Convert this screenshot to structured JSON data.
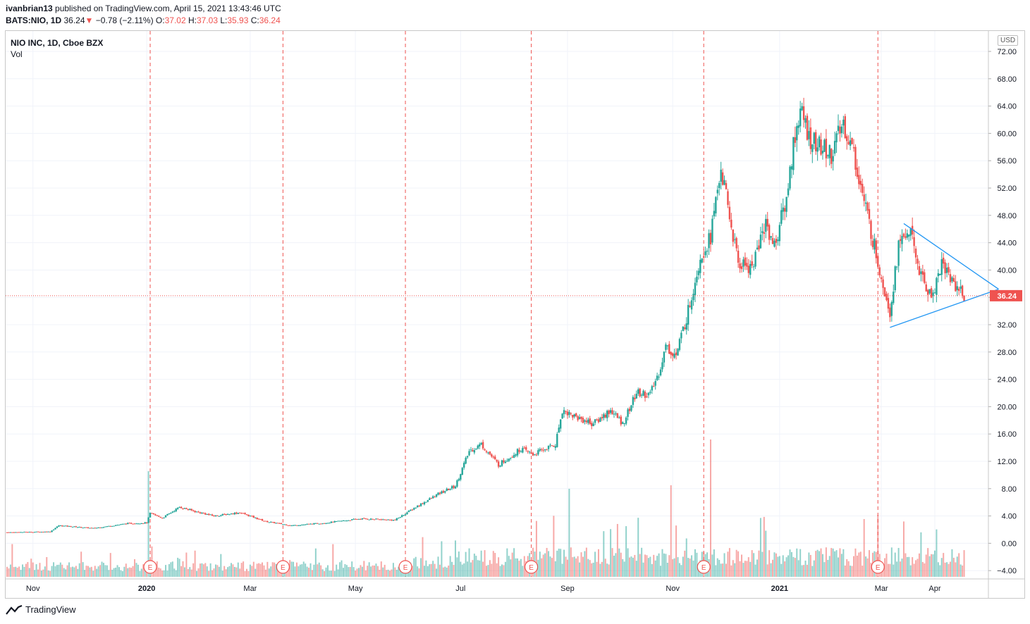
{
  "header": {
    "author": "ivanbrian13",
    "published_text": " published on TradingView.com, April 15, 2021 13:43:46 UTC",
    "symbol": "BATS:NIO, 1D",
    "last": "36.24",
    "arrow": "▼",
    "change": "−0.78 (−2.11%)",
    "o_label": "O:",
    "o_val": "37.02",
    "h_label": "H:",
    "h_val": "37.03",
    "l_label": "L:",
    "l_val": "35.93",
    "c_label": "C:",
    "c_val": "36.24"
  },
  "legend": {
    "title": "NIO INC, 1D, Cboe BZX",
    "volume": "Vol"
  },
  "price_axis": {
    "currency": "USD",
    "labels": [
      "72.00",
      "68.00",
      "64.00",
      "60.00",
      "56.00",
      "52.00",
      "48.00",
      "44.00",
      "40.00",
      "36.00",
      "32.00",
      "28.00",
      "24.00",
      "20.00",
      "16.00",
      "12.00",
      "8.00",
      "4.00",
      "0.00",
      "−4.00"
    ]
  },
  "footer": {
    "brand": "TradingView"
  },
  "chart_data": {
    "type": "candlestick",
    "title": "NIO INC, 1D, Cboe BZX",
    "ylabel": "USD",
    "ylim": [
      -4,
      72
    ],
    "current_price": 36.24,
    "current_label": "36.24",
    "colors": {
      "up": "#26a69a",
      "down": "#ef5350",
      "trend": "#2196f3",
      "earnings": "#ef5350"
    },
    "x_ticks": [
      {
        "label": "Nov",
        "day": 15
      },
      {
        "label": "2020",
        "day": 81,
        "bold": true
      },
      {
        "label": "Mar",
        "day": 141
      },
      {
        "label": "May",
        "day": 202
      },
      {
        "label": "Jul",
        "day": 263
      },
      {
        "label": "Sep",
        "day": 325
      },
      {
        "label": "Nov",
        "day": 386
      },
      {
        "label": "2021",
        "day": 448,
        "bold": true
      },
      {
        "label": "Mar",
        "day": 507
      },
      {
        "label": "Apr",
        "day": 538
      }
    ],
    "earnings_label": "E",
    "earnings_days": [
      83,
      160,
      231,
      304,
      404,
      505
    ],
    "price_keypoints": [
      [
        0,
        1.6
      ],
      [
        25,
        1.7
      ],
      [
        30,
        2.6
      ],
      [
        50,
        2.2
      ],
      [
        70,
        2.9
      ],
      [
        81,
        3.0
      ],
      [
        83,
        4.4
      ],
      [
        90,
        3.7
      ],
      [
        100,
        5.3
      ],
      [
        110,
        4.6
      ],
      [
        120,
        4.0
      ],
      [
        135,
        4.5
      ],
      [
        150,
        3.2
      ],
      [
        165,
        2.6
      ],
      [
        185,
        3.0
      ],
      [
        205,
        3.6
      ],
      [
        225,
        3.4
      ],
      [
        235,
        5.0
      ],
      [
        250,
        7.2
      ],
      [
        260,
        8.4
      ],
      [
        268,
        13.5
      ],
      [
        275,
        14.5
      ],
      [
        285,
        11.5
      ],
      [
        298,
        13.8
      ],
      [
        305,
        13.0
      ],
      [
        318,
        14.5
      ],
      [
        322,
        19.5
      ],
      [
        330,
        18.5
      ],
      [
        340,
        17.5
      ],
      [
        350,
        19.5
      ],
      [
        357,
        17.5
      ],
      [
        365,
        22.0
      ],
      [
        373,
        21.8
      ],
      [
        378,
        25.0
      ],
      [
        382,
        28.8
      ],
      [
        388,
        27.5
      ],
      [
        395,
        34.0
      ],
      [
        402,
        42.0
      ],
      [
        408,
        45.0
      ],
      [
        414,
        55.0
      ],
      [
        418,
        49.0
      ],
      [
        424,
        41.0
      ],
      [
        432,
        40.5
      ],
      [
        440,
        47.0
      ],
      [
        445,
        43.5
      ],
      [
        452,
        50.5
      ],
      [
        456,
        58.5
      ],
      [
        460,
        63.5
      ],
      [
        465,
        59.5
      ],
      [
        471,
        58.0
      ],
      [
        478,
        57.0
      ],
      [
        485,
        61.5
      ],
      [
        491,
        57.0
      ],
      [
        497,
        50.0
      ],
      [
        502,
        44.5
      ],
      [
        508,
        38.0
      ],
      [
        512,
        34.0
      ],
      [
        517,
        43.5
      ],
      [
        523,
        46.0
      ],
      [
        530,
        39.0
      ],
      [
        536,
        36.0
      ],
      [
        542,
        41.0
      ],
      [
        548,
        38.5
      ],
      [
        555,
        36.24
      ]
    ],
    "trendlines": [
      {
        "name": "upper-trendline",
        "from": [
          520,
          46.8
        ],
        "to": [
          575,
          37.2
        ]
      },
      {
        "name": "lower-trendline",
        "from": [
          512,
          31.6
        ],
        "to": [
          575,
          37.2
        ]
      }
    ]
  }
}
